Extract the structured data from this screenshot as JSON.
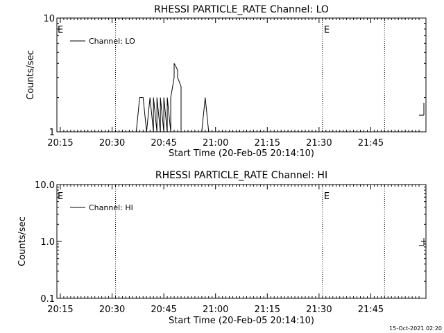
{
  "chart_data": [
    {
      "type": "line",
      "title": "RHESSI PARTICLE_RATE Channel: LO",
      "xlabel": "Start Time (20-Feb-05 20:14:10)",
      "ylabel": "Counts/sec",
      "x_axis": "time",
      "xlim": [
        "20:14",
        "22:01"
      ],
      "yscale": "log",
      "ylim": [
        1,
        10
      ],
      "y_ticks": [
        "1",
        "10"
      ],
      "x_ticks": [
        "20:15",
        "20:30",
        "20:45",
        "21:00",
        "21:15",
        "21:30",
        "21:45"
      ],
      "legend": {
        "position": "top-left",
        "entries": [
          "Channel: LO"
        ]
      },
      "event_markers": [
        {
          "time": "20:31",
          "label": ""
        },
        {
          "time": "21:31",
          "label": "E"
        },
        {
          "time": "21:49",
          "label": ""
        }
      ],
      "edge_labels": [
        {
          "label": "E",
          "position": "left"
        }
      ],
      "series": [
        {
          "name": "Channel: LO",
          "x": [
            "20:37",
            "20:38",
            "20:39",
            "20:40",
            "20:40",
            "20:41",
            "20:41",
            "20:42",
            "20:42",
            "20:43",
            "20:43",
            "20:44",
            "20:44",
            "20:45",
            "20:45",
            "20:46",
            "20:46",
            "20:47",
            "20:47",
            "20:48",
            "20:48",
            "20:49",
            "20:49",
            "20:50",
            "20:50",
            "20:51",
            "20:51",
            "20:52",
            "20:56",
            "20:57",
            "20:57",
            "20:58"
          ],
          "values": [
            1,
            2,
            2,
            1,
            1,
            2,
            2,
            1,
            2,
            1,
            2,
            1,
            2,
            1,
            2,
            1,
            2,
            1,
            2,
            3,
            4,
            3.5,
            3,
            2.5,
            1,
            1,
            1,
            1,
            1,
            2,
            2,
            1
          ]
        }
      ]
    },
    {
      "type": "line",
      "title": "RHESSI PARTICLE_RATE Channel: HI",
      "xlabel": "Start Time (20-Feb-05 20:14:10)",
      "ylabel": "Counts/sec",
      "x_axis": "time",
      "xlim": [
        "20:14",
        "22:01"
      ],
      "yscale": "log",
      "ylim": [
        0.1,
        10
      ],
      "y_ticks": [
        "0.1",
        "1.0",
        "10.0"
      ],
      "x_ticks": [
        "20:15",
        "20:30",
        "20:45",
        "21:00",
        "21:15",
        "21:30",
        "21:45"
      ],
      "legend": {
        "position": "top-left",
        "entries": [
          "Channel: HI"
        ]
      },
      "event_markers": [
        {
          "time": "20:31",
          "label": ""
        },
        {
          "time": "21:31",
          "label": "E"
        },
        {
          "time": "21:49",
          "label": ""
        }
      ],
      "edge_labels": [
        {
          "label": "E",
          "position": "left"
        }
      ],
      "series": [
        {
          "name": "Channel: HI",
          "x": [],
          "values": []
        }
      ]
    }
  ],
  "footer": {
    "timestamp": "15-Oct-2021 02:20"
  }
}
